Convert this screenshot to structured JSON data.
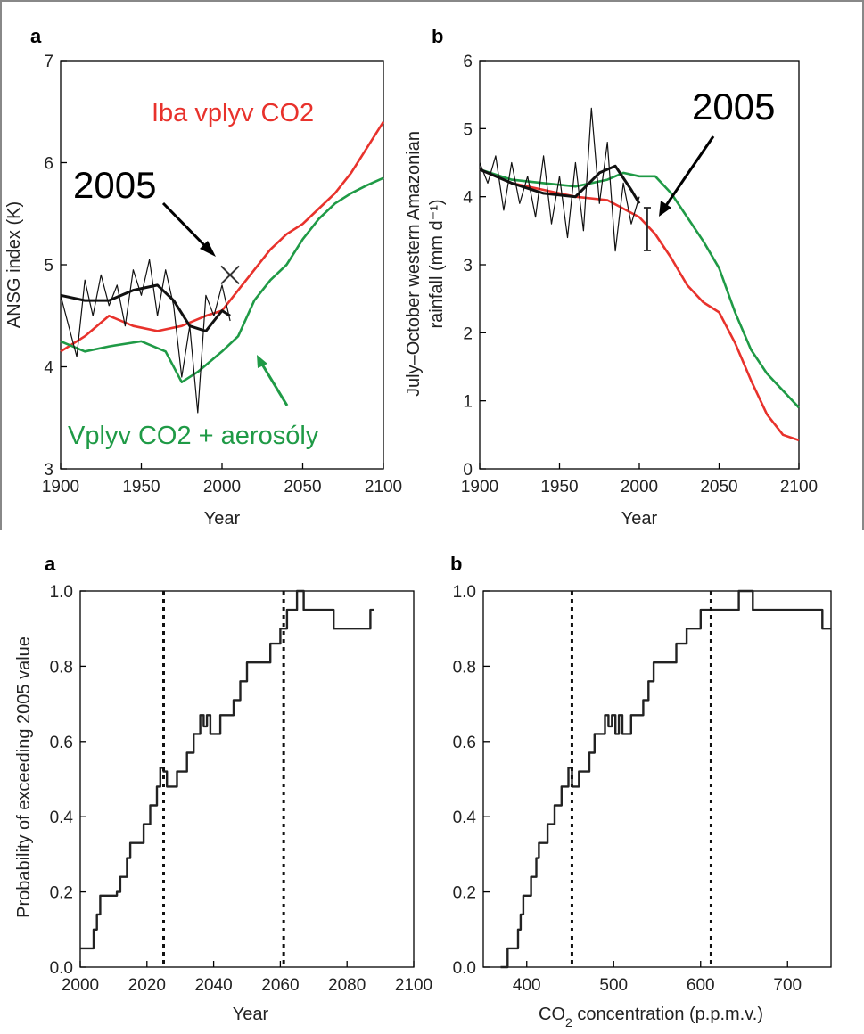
{
  "chart_data": [
    {
      "panel_label": "a",
      "type": "line",
      "xlabel": "Year",
      "ylabel": "ANSG index (K)",
      "xlim": [
        1900,
        2100
      ],
      "ylim": [
        3,
        7
      ],
      "xticks": [
        1900,
        1950,
        2000,
        2050,
        2100
      ],
      "yticks": [
        3,
        4,
        5,
        6,
        7
      ],
      "grid": false,
      "annotations": [
        "Iba vplyv CO2",
        "2005",
        "Vplyv CO2 + aerosóly"
      ],
      "colors": {
        "co2_only": "#e8322c",
        "co2_aerosols": "#1f9a46",
        "observed": "#111111"
      },
      "marker": {
        "x": 2005,
        "y": 4.9
      },
      "series": [
        {
          "key": "co2_only",
          "x": [
            1900,
            1915,
            1930,
            1945,
            1960,
            1975,
            1990,
            2000,
            2010,
            2020,
            2030,
            2040,
            2050,
            2060,
            2070,
            2080,
            2090,
            2100
          ],
          "y": [
            4.15,
            4.3,
            4.5,
            4.4,
            4.35,
            4.4,
            4.5,
            4.55,
            4.75,
            4.95,
            5.15,
            5.3,
            5.4,
            5.55,
            5.7,
            5.9,
            6.15,
            6.4
          ]
        },
        {
          "key": "co2_aerosols",
          "x": [
            1900,
            1915,
            1930,
            1950,
            1965,
            1975,
            1985,
            2000,
            2010,
            2020,
            2030,
            2040,
            2050,
            2060,
            2070,
            2080,
            2090,
            2100
          ],
          "y": [
            4.25,
            4.15,
            4.2,
            4.25,
            4.15,
            3.85,
            3.95,
            4.15,
            4.3,
            4.65,
            4.85,
            5.0,
            5.25,
            5.45,
            5.6,
            5.7,
            5.78,
            5.85
          ]
        },
        {
          "key": "observed_raw",
          "x": [
            1900,
            1905,
            1910,
            1915,
            1920,
            1925,
            1930,
            1935,
            1940,
            1945,
            1950,
            1955,
            1960,
            1965,
            1970,
            1975,
            1980,
            1985,
            1990,
            1995,
            2000,
            2005
          ],
          "y": [
            4.7,
            4.4,
            4.1,
            4.85,
            4.5,
            4.9,
            4.6,
            4.8,
            4.4,
            4.95,
            4.7,
            5.05,
            4.5,
            4.95,
            4.6,
            3.9,
            4.4,
            3.55,
            4.7,
            4.5,
            4.8,
            4.45
          ]
        },
        {
          "key": "observed_smooth",
          "x": [
            1900,
            1915,
            1930,
            1945,
            1960,
            1970,
            1980,
            1990,
            2000,
            2005
          ],
          "y": [
            4.7,
            4.65,
            4.65,
            4.75,
            4.8,
            4.65,
            4.4,
            4.35,
            4.55,
            4.5
          ]
        }
      ]
    },
    {
      "panel_label": "b",
      "type": "line",
      "xlabel": "Year",
      "ylabel": "July–October western Amazonian rainfall (mm d⁻¹)",
      "ylabel_line1": "July–October western Amazonian",
      "ylabel_line2": "rainfall (mm d⁻¹)",
      "xlim": [
        1900,
        2100
      ],
      "ylim": [
        0,
        6
      ],
      "xticks": [
        1900,
        1950,
        2000,
        2050,
        2100
      ],
      "yticks": [
        0,
        1,
        2,
        3,
        4,
        5,
        6
      ],
      "grid": false,
      "annotations": [
        "2005"
      ],
      "colors": {
        "co2_only": "#e8322c",
        "co2_aerosols": "#1f9a46",
        "observed": "#111111"
      },
      "marker": {
        "x": 2005,
        "y": 3.55
      },
      "series": [
        {
          "key": "co2_only",
          "x": [
            1900,
            1920,
            1940,
            1960,
            1980,
            2000,
            2010,
            2020,
            2030,
            2040,
            2050,
            2060,
            2070,
            2080,
            2090,
            2100
          ],
          "y": [
            4.4,
            4.2,
            4.1,
            4.0,
            3.95,
            3.7,
            3.45,
            3.1,
            2.7,
            2.45,
            2.3,
            1.85,
            1.3,
            0.8,
            0.5,
            0.42
          ]
        },
        {
          "key": "co2_aerosols",
          "x": [
            1900,
            1920,
            1940,
            1960,
            1980,
            1990,
            2000,
            2010,
            2020,
            2030,
            2040,
            2050,
            2060,
            2070,
            2080,
            2090,
            2100
          ],
          "y": [
            4.4,
            4.25,
            4.2,
            4.15,
            4.25,
            4.35,
            4.3,
            4.3,
            4.05,
            3.7,
            3.35,
            2.95,
            2.3,
            1.75,
            1.4,
            1.15,
            0.9
          ]
        },
        {
          "key": "observed_raw",
          "x": [
            1900,
            1905,
            1910,
            1915,
            1920,
            1925,
            1930,
            1935,
            1940,
            1945,
            1950,
            1955,
            1960,
            1965,
            1970,
            1975,
            1980,
            1985,
            1990,
            1995,
            2000
          ],
          "y": [
            4.5,
            4.2,
            4.6,
            3.8,
            4.5,
            3.9,
            4.3,
            3.7,
            4.6,
            3.6,
            4.3,
            3.4,
            4.5,
            3.5,
            5.3,
            3.9,
            4.8,
            3.2,
            4.2,
            3.6,
            4.0
          ]
        },
        {
          "key": "observed_smooth",
          "x": [
            1900,
            1920,
            1940,
            1960,
            1975,
            1985,
            1995,
            2000
          ],
          "y": [
            4.4,
            4.2,
            4.05,
            4.0,
            4.35,
            4.45,
            4.1,
            3.9
          ]
        }
      ]
    },
    {
      "panel_label": "a",
      "type": "line",
      "xlabel": "Year",
      "ylabel": "Probability of exceeding 2005 value",
      "xlim": [
        2000,
        2100
      ],
      "ylim": [
        0,
        1
      ],
      "xticks": [
        2000,
        2020,
        2040,
        2060,
        2080,
        2100
      ],
      "ytick_labels": [
        "0.0",
        "0.2",
        "0.4",
        "0.6",
        "0.8",
        "1.0"
      ],
      "grid": false,
      "vlines": [
        2025,
        2061
      ],
      "series": [
        {
          "key": "probability",
          "x": [
            2000,
            2003,
            2004,
            2005,
            2006,
            2010,
            2011,
            2012,
            2013,
            2014,
            2015,
            2016,
            2017,
            2019,
            2020,
            2021,
            2022,
            2023,
            2024,
            2025,
            2026,
            2027,
            2028,
            2029,
            2030,
            2031,
            2032,
            2033,
            2034,
            2035,
            2036,
            2037,
            2038,
            2039,
            2040,
            2041,
            2042,
            2043,
            2045,
            2046,
            2047,
            2048,
            2049,
            2050,
            2052,
            2053,
            2054,
            2055,
            2056,
            2057,
            2058,
            2059,
            2060,
            2062,
            2064,
            2065,
            2066,
            2067,
            2070,
            2071,
            2075,
            2076,
            2085,
            2087,
            2088
          ],
          "y": [
            0.05,
            0.05,
            0.1,
            0.14,
            0.19,
            0.19,
            0.2,
            0.24,
            0.24,
            0.29,
            0.33,
            0.33,
            0.33,
            0.38,
            0.38,
            0.43,
            0.43,
            0.48,
            0.53,
            0.52,
            0.48,
            0.48,
            0.48,
            0.52,
            0.52,
            0.52,
            0.57,
            0.57,
            0.62,
            0.62,
            0.67,
            0.64,
            0.67,
            0.62,
            0.62,
            0.62,
            0.67,
            0.67,
            0.67,
            0.71,
            0.71,
            0.76,
            0.76,
            0.81,
            0.81,
            0.81,
            0.81,
            0.81,
            0.81,
            0.86,
            0.86,
            0.86,
            0.9,
            0.95,
            0.95,
            1.0,
            1.0,
            0.95,
            0.95,
            0.95,
            0.95,
            0.9,
            0.9,
            0.95,
            0.95
          ]
        }
      ]
    },
    {
      "panel_label": "b",
      "type": "line",
      "xlabel": "CO₂ concentration (p.p.m.v.)",
      "ylabel": "",
      "xlim": [
        350,
        750
      ],
      "ylim": [
        0,
        1
      ],
      "xticks": [
        400,
        500,
        600,
        700
      ],
      "ytick_labels": [
        "0.0",
        "0.2",
        "0.4",
        "0.6",
        "0.8",
        "1.0"
      ],
      "grid": false,
      "vlines": [
        452,
        612
      ],
      "series": [
        {
          "key": "probability",
          "x": [
            370,
            376,
            378,
            381,
            384,
            390,
            393,
            396,
            399,
            402,
            405,
            408,
            411,
            414,
            420,
            424,
            428,
            432,
            436,
            440,
            444,
            448,
            452,
            456,
            460,
            466,
            472,
            478,
            484,
            490,
            494,
            498,
            502,
            506,
            510,
            516,
            520,
            530,
            534,
            540,
            546,
            552,
            560,
            566,
            572,
            578,
            584,
            590,
            596,
            600,
            606,
            612,
            620,
            628,
            636,
            644,
            652,
            660,
            680,
            700,
            720,
            740,
            750
          ],
          "y": [
            0.0,
            0.0,
            0.05,
            0.05,
            0.05,
            0.1,
            0.14,
            0.19,
            0.19,
            0.19,
            0.24,
            0.24,
            0.29,
            0.33,
            0.33,
            0.38,
            0.38,
            0.43,
            0.43,
            0.48,
            0.48,
            0.53,
            0.48,
            0.48,
            0.52,
            0.52,
            0.57,
            0.62,
            0.62,
            0.67,
            0.64,
            0.67,
            0.62,
            0.67,
            0.62,
            0.62,
            0.67,
            0.67,
            0.71,
            0.76,
            0.81,
            0.81,
            0.81,
            0.81,
            0.86,
            0.86,
            0.9,
            0.9,
            0.9,
            0.95,
            0.95,
            0.95,
            0.95,
            0.95,
            0.95,
            1.0,
            1.0,
            0.95,
            0.95,
            0.95,
            0.95,
            0.9,
            0.9
          ]
        }
      ]
    }
  ]
}
